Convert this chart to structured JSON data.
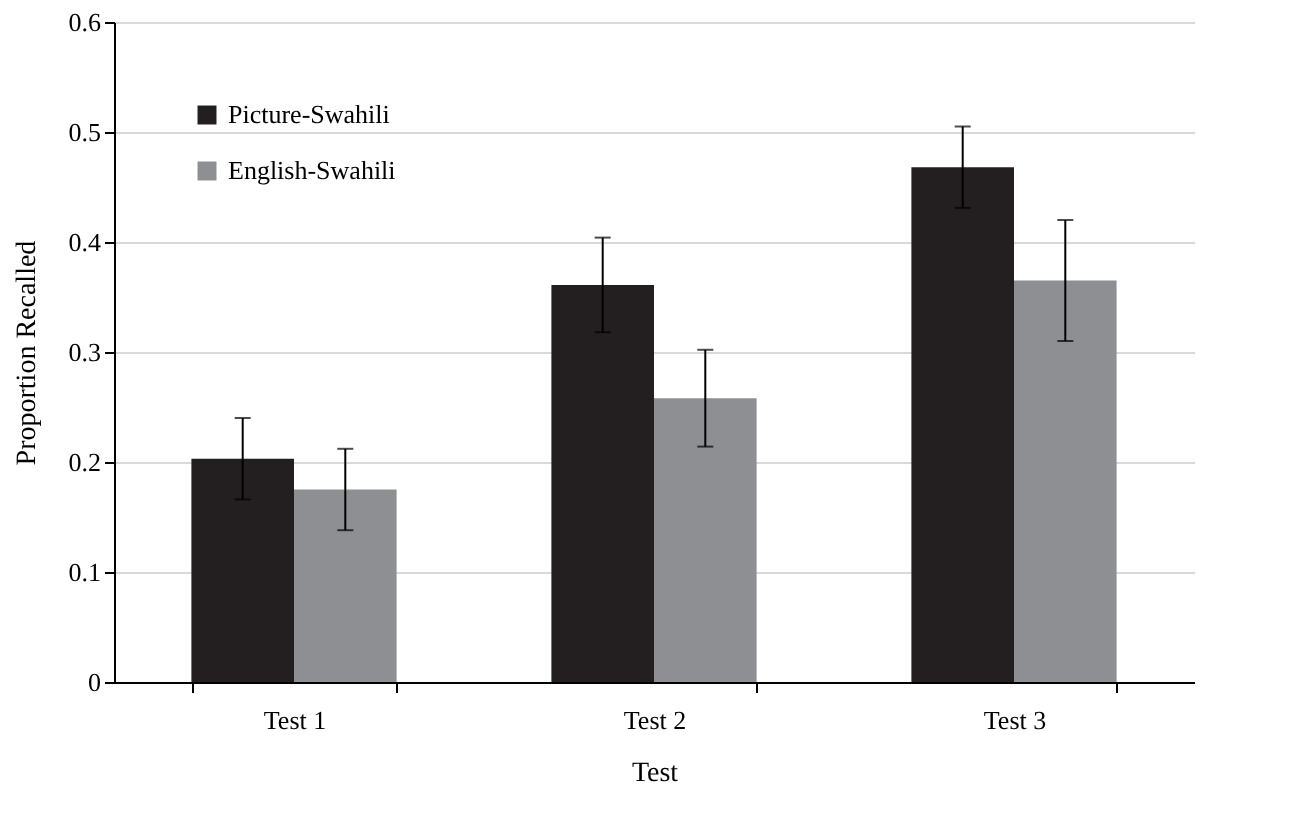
{
  "chart_data": {
    "type": "bar",
    "xlabel": "Test",
    "ylabel": "Proportion Recalled",
    "categories": [
      "Test 1",
      "Test 2",
      "Test 3"
    ],
    "series": [
      {
        "name": "Picture-Swahili",
        "color": "#231f20",
        "values": [
          0.203,
          0.361,
          0.468
        ],
        "errors": [
          0.037,
          0.043,
          0.037
        ]
      },
      {
        "name": "English-Swahili",
        "color": "#8e8f92",
        "values": [
          0.175,
          0.258,
          0.365
        ],
        "errors": [
          0.037,
          0.044,
          0.055
        ]
      }
    ],
    "ylim": [
      0,
      0.6
    ],
    "yticks": [
      0,
      0.1,
      0.2,
      0.3,
      0.4,
      0.5,
      0.6
    ],
    "grid": "y",
    "legend": "top left"
  }
}
